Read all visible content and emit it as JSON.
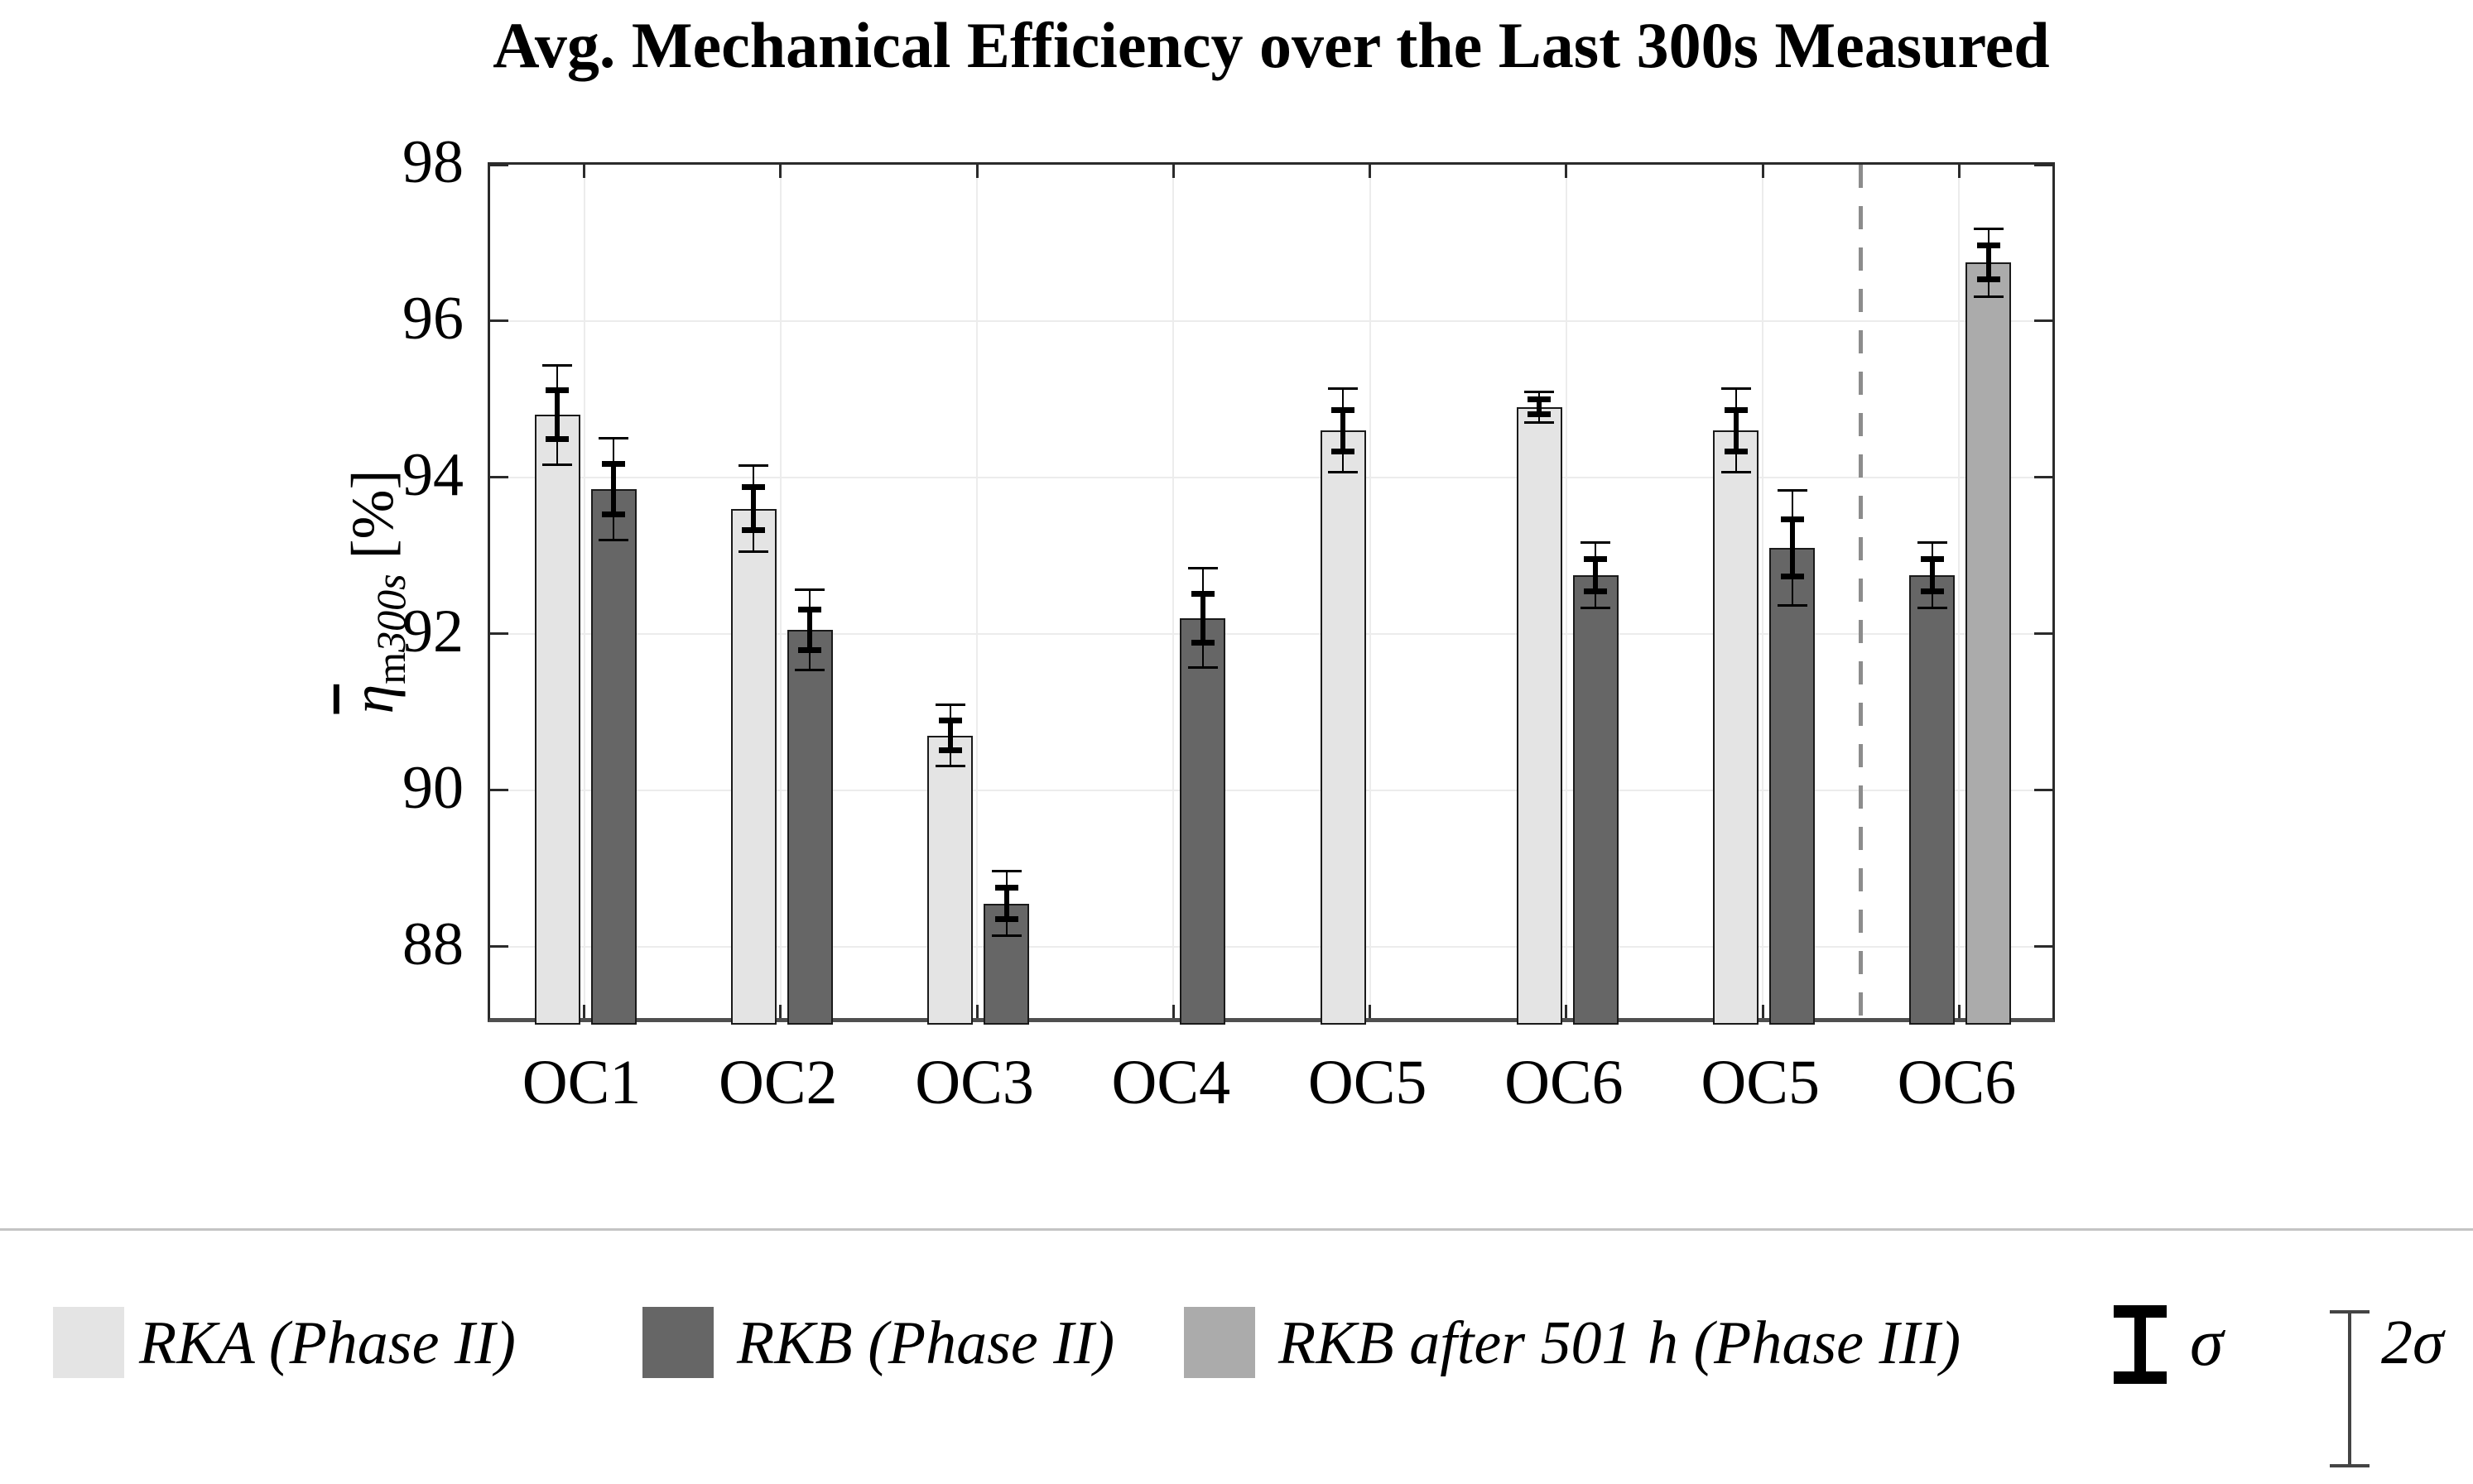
{
  "chart_data": {
    "type": "bar",
    "title": "Avg. Mechanical Efficiency over the Last 300s Measured",
    "ylabel": {
      "symbol": "η",
      "overline": true,
      "sub_roman": "m",
      "sub_italic": "300s",
      "unit": "[%]",
      "plain": "η̄m300s [%]"
    },
    "ylim": [
      87,
      98
    ],
    "yticks": [
      88,
      90,
      92,
      94,
      96,
      98
    ],
    "grid": true,
    "categories": [
      "OC1",
      "OC2",
      "OC3",
      "OC4",
      "OC5",
      "OC6",
      "OC5",
      "OC6"
    ],
    "series": [
      {
        "name": "RKA (Phase II)",
        "color": "#e4e4e4"
      },
      {
        "name": "RKB (Phase II)",
        "color": "#666666"
      },
      {
        "name": "RKB after 501 h (Phase III)",
        "color": "#ababab"
      }
    ],
    "groups": [
      {
        "label": "OC1",
        "bars": [
          {
            "series": 0,
            "slot": 0,
            "value": 94.8,
            "sigma": 0.32
          },
          {
            "series": 1,
            "slot": 1,
            "value": 93.85,
            "sigma": 0.33
          }
        ]
      },
      {
        "label": "OC2",
        "bars": [
          {
            "series": 0,
            "slot": 0,
            "value": 93.6,
            "sigma": 0.28
          },
          {
            "series": 1,
            "slot": 1,
            "value": 92.05,
            "sigma": 0.26
          }
        ]
      },
      {
        "label": "OC3",
        "bars": [
          {
            "series": 0,
            "slot": 0,
            "value": 90.7,
            "sigma": 0.2
          },
          {
            "series": 1,
            "slot": 1,
            "value": 88.55,
            "sigma": 0.21
          }
        ]
      },
      {
        "label": "OC4",
        "bars": [
          {
            "series": 1,
            "slot": 1,
            "value": 92.2,
            "sigma": 0.32
          }
        ]
      },
      {
        "label": "OC5",
        "bars": [
          {
            "series": 0,
            "slot": 0,
            "value": 94.6,
            "sigma": 0.27
          }
        ]
      },
      {
        "label": "OC6",
        "bars": [
          {
            "series": 0,
            "slot": 0,
            "value": 94.9,
            "sigma": 0.1
          },
          {
            "series": 1,
            "slot": 1,
            "value": 92.75,
            "sigma": 0.21
          }
        ]
      },
      {
        "label": "OC5",
        "bars": [
          {
            "series": 0,
            "slot": 0,
            "value": 94.6,
            "sigma": 0.27
          },
          {
            "series": 1,
            "slot": 1,
            "value": 93.1,
            "sigma": 0.37
          }
        ]
      },
      {
        "label": "OC6",
        "bars": [
          {
            "series": 1,
            "slot": 0,
            "value": 92.75,
            "sigma": 0.21
          },
          {
            "series": 2,
            "slot": 1,
            "value": 96.75,
            "sigma": 0.22
          }
        ]
      }
    ],
    "divider": {
      "after_category_index": 6,
      "style": "dashed",
      "color": "#8c8c8c"
    },
    "error_key": {
      "thick_bar_means": "σ",
      "thin_bar_means": "2σ"
    },
    "colors": {
      "grid": "#ececec",
      "axis": "#2b2b2b",
      "axis_bottom": "#4f4f4f",
      "error_bar": "#000000",
      "separator_line": "#c4c4c4",
      "dashed_divider": "#8c8c8c",
      "background": "#ffffff"
    },
    "legend_position": "bottom"
  },
  "legend": {
    "items": [
      "RKA (Phase II)",
      "RKB (Phase II)",
      "RKB after 501 h (Phase III)"
    ],
    "sigma_label": "σ",
    "two_sigma_label": "2σ"
  }
}
